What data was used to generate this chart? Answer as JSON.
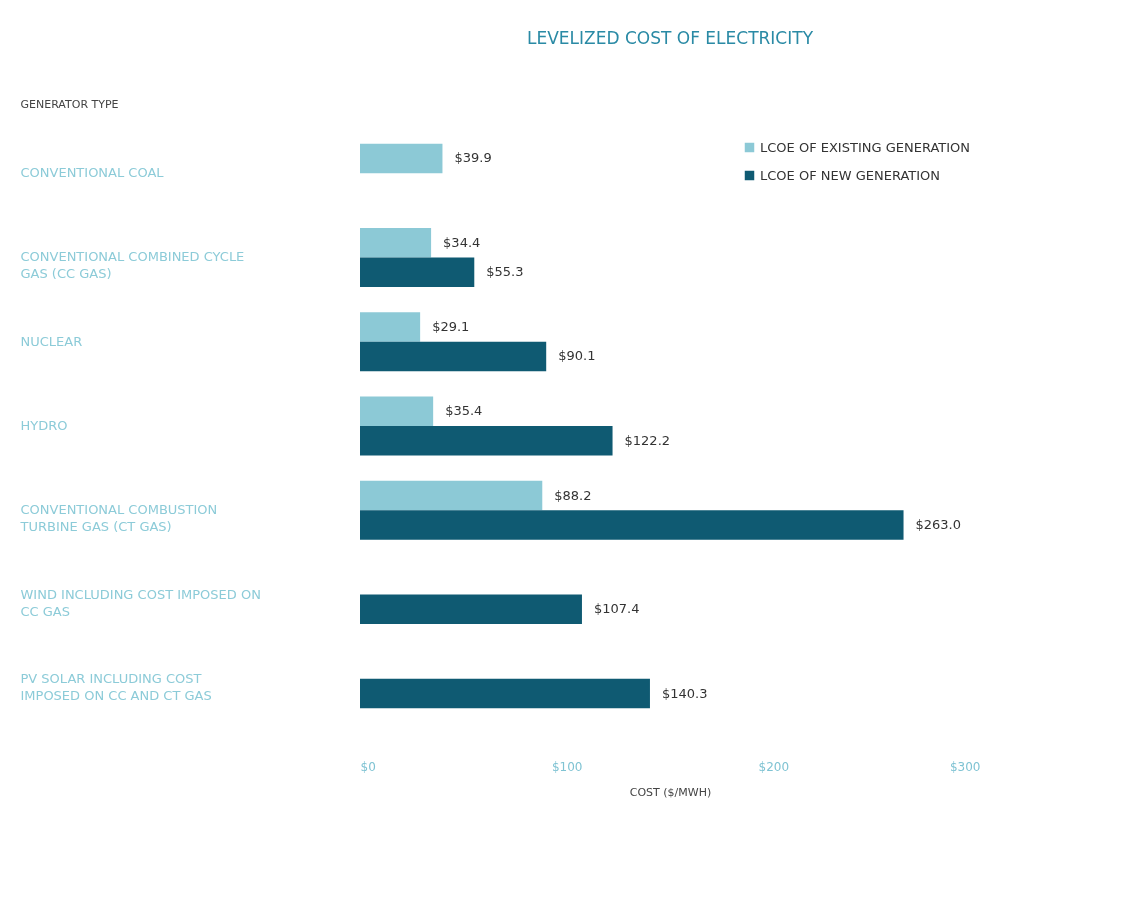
{
  "chart_data": {
    "type": "bar",
    "orientation": "horizontal",
    "title": "LEVELIZED COST OF ELECTRICITY",
    "ylabel": "GENERATOR TYPE",
    "xlabel": "COST ($/MWH)",
    "categories": [
      "CONVENTIONAL COAL",
      "CONVENTIONAL COMBINED CYCLE GAS (CC GAS)",
      "NUCLEAR",
      "HYDRO",
      "CONVENTIONAL COMBUSTION TURBINE GAS (CT GAS)",
      "WIND INCLUDING COST IMPOSED ON CC GAS",
      "PV SOLAR INCLUDING COST IMPOSED ON CC AND CT GAS"
    ],
    "series": [
      {
        "name": "LCOE OF EXISTING GENERATION",
        "color": "#8cc9d6",
        "values": [
          39.9,
          34.4,
          29.1,
          35.4,
          88.2,
          null,
          null
        ],
        "value_labels": [
          "$39.9",
          "$34.4",
          "$29.1",
          "$35.4",
          "$88.2",
          null,
          null
        ]
      },
      {
        "name": "LCOE OF NEW GENERATION",
        "color": "#0f5a72",
        "values": [
          null,
          55.3,
          90.1,
          122.2,
          263.0,
          107.4,
          140.3
        ],
        "value_labels": [
          null,
          "$55.3",
          "$90.1",
          "$122.2",
          "$263.0",
          "$107.4",
          "$140.3"
        ]
      }
    ],
    "xlim": [
      0,
      300
    ],
    "xticks": [
      {
        "value": 0,
        "label": "$0"
      },
      {
        "value": 100,
        "label": "$100"
      },
      {
        "value": 200,
        "label": "$200"
      },
      {
        "value": 300,
        "label": "$300"
      }
    ],
    "grid": false,
    "legend": "top right"
  }
}
